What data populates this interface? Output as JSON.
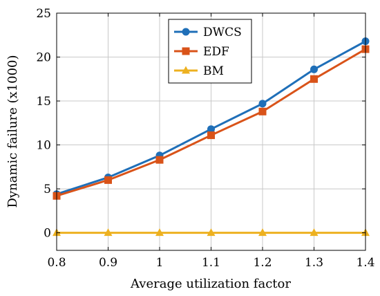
{
  "chart_data": {
    "type": "line",
    "x": [
      0.8,
      0.9,
      1.0,
      1.1,
      1.2,
      1.3,
      1.4
    ],
    "x_tick_labels": [
      "0.8",
      "0.9",
      "1",
      "1.1",
      "1.2",
      "1.3",
      "1.4"
    ],
    "y_ticks": [
      0,
      5,
      10,
      15,
      20,
      25
    ],
    "y_tick_labels": [
      "0",
      "5",
      "10",
      "15",
      "20",
      "25"
    ],
    "xlim": [
      0.8,
      1.4
    ],
    "ylim": [
      -2,
      25
    ],
    "xlabel": "Average utilization factor",
    "ylabel": "Dynamic failure (x1000)",
    "grid": true,
    "legend_position": "top-right",
    "series": [
      {
        "name": "DWCS",
        "color": "#1f6fb8",
        "marker": "circle",
        "values": [
          4.4,
          6.3,
          8.8,
          11.8,
          14.7,
          18.6,
          21.8
        ]
      },
      {
        "name": "EDF",
        "color": "#d95319",
        "marker": "square",
        "values": [
          4.2,
          6.0,
          8.3,
          11.1,
          13.8,
          17.5,
          20.9
        ]
      },
      {
        "name": "BM",
        "color": "#edb120",
        "marker": "triangle",
        "values": [
          0.0,
          0.0,
          0.0,
          0.0,
          0.0,
          0.0,
          0.0
        ]
      }
    ]
  }
}
